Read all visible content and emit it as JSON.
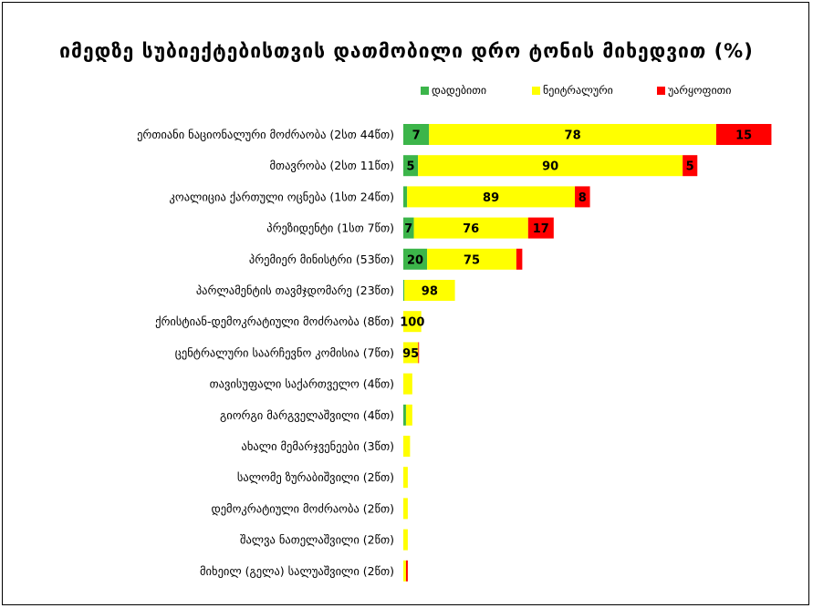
{
  "chart_data": {
    "type": "bar",
    "orientation": "horizontal",
    "stacked": true,
    "title": "იმედზე სუბიექტებისთვის დათმობილი დრო ტონის მიხედვით (%)",
    "legend_position": "top-right",
    "grid": false,
    "xlim": [
      0,
      100
    ],
    "categories": [
      "ერთიანი ნაციონალური მოძრაობა (2სთ 44წთ)",
      "მთავრობა (2სთ 11წთ)",
      "კოალიცია ქართული ოცნება (1სთ 24წთ)",
      "პრეზიდენტი (1სთ 7წთ)",
      "პრემიერ მინისტრი (53წთ)",
      "პარლამენტის თავმჯდომარე (23წთ)",
      "ქრისტიან-დემოკრატიული მოძრაობა (8წთ)",
      "ცენტრალური საარჩევნო კომისია (7წთ)",
      "თავისუფალი საქართველო (4წთ)",
      "გიორგი მარგველაშვილი (4წთ)",
      "ახალი მემარჯვენეები (3წთ)",
      "სალომე ზურაბიშვილი (2წთ)",
      "დემოკრატიული მოძრაობა (2წთ)",
      "შალვა ნათელაშვილი (2წთ)",
      "მიხეილ (გელა) სალუაშვილი (2წთ)"
    ],
    "bar_totals_minutes": [
      164,
      131,
      84,
      67,
      53,
      23,
      8,
      7,
      4,
      4,
      3,
      2,
      2,
      2,
      2
    ],
    "series": [
      {
        "name": "დადებითი",
        "color": "#3cb54a",
        "values": [
          7,
          5,
          2,
          7,
          20,
          2,
          0,
          0,
          0,
          30,
          0,
          0,
          0,
          0,
          0
        ],
        "labels": [
          "7",
          "5",
          "",
          "7",
          "20",
          "",
          "",
          "",
          "",
          "",
          "",
          "",
          "",
          "",
          ""
        ]
      },
      {
        "name": "ნეიტრალური",
        "color": "#ffff00",
        "values": [
          78,
          90,
          89,
          76,
          75,
          98,
          100,
          95,
          100,
          70,
          100,
          100,
          100,
          100,
          60
        ],
        "labels": [
          "78",
          "90",
          "89",
          "76",
          "75",
          "98",
          "100",
          "95",
          "",
          "",
          "",
          "",
          "",
          "",
          ""
        ]
      },
      {
        "name": "უარყოფითი",
        "color": "#ff0000",
        "values": [
          15,
          5,
          8,
          17,
          5,
          0,
          0,
          5,
          0,
          0,
          0,
          0,
          0,
          0,
          40
        ],
        "labels": [
          "15",
          "5",
          "8",
          "17",
          "",
          "",
          "",
          "",
          "",
          "",
          "",
          "",
          "",
          "",
          ""
        ]
      }
    ]
  }
}
